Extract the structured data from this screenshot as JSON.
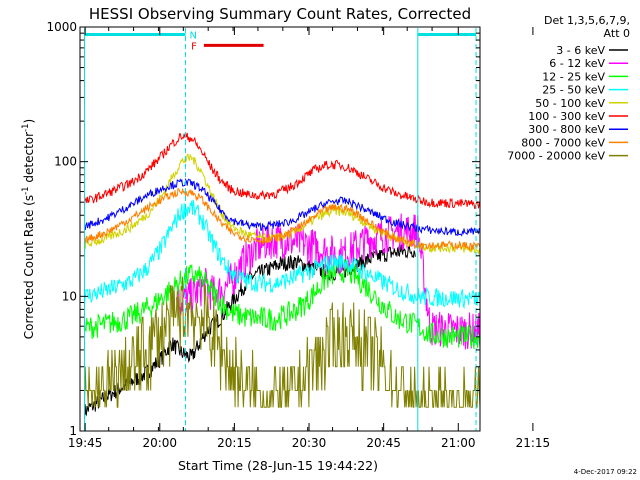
{
  "chart_data": {
    "type": "line",
    "title": "HESSI Observing Summary Count Rates, Corrected",
    "xlabel": "Start Time (28-Jun-15 19:44:22)",
    "ylabel": "Corrected Count Rate (s⁻¹ detector⁻¹)",
    "ylabel_parts": {
      "prefix": "Corrected Count Rate (s",
      "exp1": "-1",
      "middle": " detector",
      "exp2": "-1",
      "suffix": ")"
    },
    "x_scale": "time",
    "x_range_minutes": [
      19.6,
      100.0
    ],
    "x_ticks": [
      "19:45",
      "20:00",
      "20:15",
      "20:30",
      "20:45",
      "21:00",
      "21:15"
    ],
    "y_scale": "log",
    "ylim": [
      1,
      1000
    ],
    "y_ticks": [
      "1",
      "10",
      "100",
      "1000"
    ],
    "legend_title": [
      "Det 1,3,5,6,7,9,",
      "Att 0"
    ],
    "legend_position": "right",
    "series": [
      {
        "name": "3 - 6 keV",
        "color": "#000000",
        "x": [
          20.5,
          27,
          33,
          36,
          38,
          40,
          42,
          45,
          48,
          51,
          54,
          57,
          60,
          63,
          66,
          69,
          72,
          75,
          78,
          80,
          82,
          87
        ],
        "y": [
          1.4,
          2.0,
          2.7,
          3.5,
          4.5,
          3.8,
          3.5,
          5.5,
          7.0,
          10.0,
          14.0,
          15.5,
          17.5,
          18.0,
          16.5,
          15.0,
          15.0,
          17.0,
          19.0,
          20.0,
          21.0,
          22.0
        ]
      },
      {
        "name": "6 - 12 keV",
        "color": "#ff00ff",
        "x": [
          39,
          42,
          44,
          45,
          46,
          48,
          50,
          52,
          55,
          58,
          61,
          64,
          67,
          70,
          72,
          74,
          77,
          80,
          83,
          87.5,
          90,
          95,
          100
        ],
        "y": [
          9.0,
          10.0,
          11.5,
          12.0,
          10.5,
          11.0,
          13.0,
          17.0,
          23.0,
          26.0,
          26.0,
          25.0,
          23.0,
          21.0,
          20.0,
          22.0,
          26.0,
          28.0,
          30.0,
          31.0,
          5.8,
          5.6,
          5.5
        ]
      },
      {
        "name": "12 - 25 keV",
        "color": "#00ff00",
        "x": [
          20.5,
          25,
          30,
          34,
          37,
          40,
          42,
          44,
          46,
          48,
          50,
          53,
          56,
          59,
          62,
          65,
          67,
          69,
          71,
          73,
          75,
          77,
          80,
          83,
          86,
          87.5,
          90,
          95,
          100
        ],
        "y": [
          5.8,
          6.2,
          7.0,
          8.5,
          10.5,
          13.0,
          14.5,
          13.5,
          11.0,
          9.0,
          7.5,
          7.0,
          6.8,
          6.8,
          7.5,
          9.0,
          11.0,
          13.5,
          15.0,
          15.5,
          14.0,
          12.0,
          9.0,
          7.0,
          6.3,
          6.0,
          5.2,
          5.0,
          5.0
        ]
      },
      {
        "name": "25 - 50 keV",
        "color": "#00ffff",
        "x": [
          20.5,
          25,
          30,
          33,
          36,
          38,
          40,
          42,
          44,
          46,
          48,
          50,
          53,
          56,
          59,
          62,
          65,
          67,
          69,
          71,
          73,
          75,
          77,
          80,
          83,
          86,
          87.5,
          90,
          95,
          100
        ],
        "y": [
          10.0,
          11.0,
          13.0,
          16.0,
          23.0,
          32.0,
          43.0,
          46.0,
          38.0,
          26.0,
          19.0,
          15.0,
          13.0,
          12.5,
          12.5,
          13.5,
          15.0,
          16.0,
          17.5,
          18.0,
          18.0,
          16.5,
          15.0,
          13.0,
          11.5,
          10.5,
          10.0,
          9.8,
          9.7,
          9.6
        ]
      },
      {
        "name": "50 - 100 keV",
        "color": "#d2d200",
        "x": [
          20.5,
          25,
          30,
          33,
          36,
          38,
          40,
          42,
          44,
          46,
          48,
          50,
          53,
          56,
          59,
          62,
          65,
          67,
          69,
          71,
          73,
          75,
          77,
          80,
          83,
          86,
          87.5,
          90,
          95,
          100
        ],
        "y": [
          24.0,
          27.0,
          33.0,
          40.0,
          55.0,
          75.0,
          100.0,
          108.0,
          85.0,
          58.0,
          42.0,
          33.0,
          29.0,
          27.0,
          27.0,
          29.0,
          34.0,
          38.0,
          41.0,
          43.0,
          42.0,
          39.0,
          35.0,
          30.0,
          27.0,
          25.0,
          24.0,
          23.0,
          23.0,
          22.0
        ]
      },
      {
        "name": "100 - 300 keV",
        "color": "#ff0000",
        "x": [
          20.5,
          25,
          30,
          33,
          36,
          38,
          40,
          42,
          44,
          46,
          48,
          50,
          53,
          56,
          59,
          62,
          65,
          67,
          69,
          71,
          73,
          75,
          77,
          80,
          83,
          86,
          87.5,
          90,
          95,
          100
        ],
        "y": [
          50.0,
          58.0,
          70.0,
          85.0,
          110.0,
          135.0,
          155.0,
          150.0,
          120.0,
          90.0,
          72.0,
          62.0,
          57.0,
          56.0,
          58.0,
          65.0,
          78.0,
          88.0,
          94.0,
          95.0,
          92.0,
          85.0,
          76.0,
          66.0,
          58.0,
          54.0,
          52.0,
          50.0,
          49.0,
          48.0
        ]
      },
      {
        "name": "300 - 800 keV",
        "color": "#0000ff",
        "x": [
          20.5,
          25,
          30,
          33,
          36,
          38,
          40,
          42,
          44,
          46,
          48,
          50,
          53,
          56,
          59,
          62,
          65,
          67,
          69,
          71,
          73,
          75,
          77,
          80,
          83,
          86,
          87.5,
          90,
          95,
          100
        ],
        "y": [
          33.0,
          38.0,
          48.0,
          56.0,
          63.0,
          67.0,
          70.0,
          69.0,
          63.0,
          52.0,
          43.0,
          37.0,
          34.0,
          33.0,
          34.0,
          36.0,
          41.0,
          45.0,
          49.0,
          51.0,
          51.0,
          48.0,
          44.0,
          39.0,
          35.0,
          33.0,
          32.0,
          31.0,
          30.0,
          30.0
        ]
      },
      {
        "name": "800 - 7000 keV",
        "color": "#ff8000",
        "x": [
          20.5,
          25,
          30,
          33,
          36,
          38,
          40,
          42,
          44,
          46,
          48,
          50,
          53,
          56,
          59,
          62,
          65,
          67,
          69,
          71,
          73,
          75,
          77,
          80,
          83,
          86,
          87.5,
          90,
          95,
          100
        ],
        "y": [
          26.0,
          30.0,
          38.0,
          45.0,
          52.0,
          57.0,
          60.0,
          59.0,
          53.0,
          43.0,
          35.0,
          30.0,
          27.0,
          26.0,
          27.0,
          30.0,
          35.0,
          40.0,
          44.0,
          46.0,
          45.0,
          42.0,
          37.0,
          31.0,
          27.0,
          25.0,
          24.5,
          24.0,
          24.0,
          23.5
        ]
      },
      {
        "name": "7000 - 20000 keV",
        "color": "#808000",
        "x": [
          20.5,
          25,
          30,
          34,
          37,
          40,
          42,
          44,
          46,
          48,
          50,
          52,
          55,
          58,
          61,
          64,
          67,
          70,
          72,
          74,
          77,
          80,
          82,
          84,
          86,
          87.5,
          90,
          95,
          100
        ],
        "y": [
          1.5,
          2.0,
          3.0,
          4.5,
          6.0,
          7.5,
          8.0,
          7.0,
          5.5,
          4.0,
          3.0,
          2.3,
          1.8,
          1.6,
          1.7,
          2.3,
          3.3,
          4.5,
          5.0,
          5.0,
          4.3,
          3.2,
          2.4,
          1.9,
          1.6,
          1.5,
          1.5,
          1.5,
          1.5
        ]
      }
    ],
    "annotations": [
      {
        "type": "night-marker",
        "label": "N",
        "color": "#00e0e0",
        "x_segments": [
          [
            20.5,
            40.8
          ],
          [
            87.5,
            99.2
          ]
        ],
        "level": 880
      },
      {
        "type": "flare-marker",
        "label": "F",
        "color": "#e00000",
        "x_segments": [
          [
            44.5,
            56.5
          ]
        ],
        "level": 730
      }
    ],
    "vertical_lines": [
      {
        "x": 20.5,
        "color": "#00e0e0",
        "style": "solid"
      },
      {
        "x": 40.8,
        "color": "#00e0e0",
        "style": "dashed"
      },
      {
        "x": 87.5,
        "color": "#00e0e0",
        "style": "solid"
      },
      {
        "x": 99.2,
        "color": "#00e0e0",
        "style": "dashed"
      }
    ],
    "grid": false
  },
  "footer": {
    "date_stamp": "4-Dec-2017 09:22"
  }
}
